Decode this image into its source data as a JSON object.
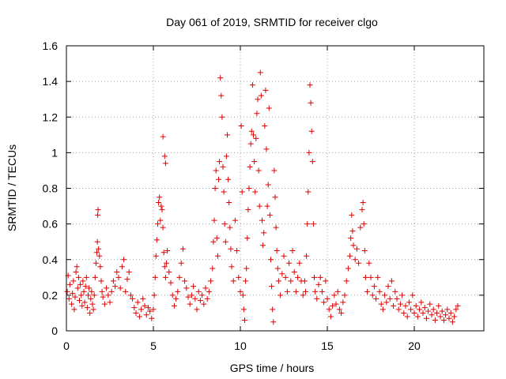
{
  "chart_data": {
    "type": "scatter",
    "title": "Day 061 of 2019, SRMTID for receiver clgo",
    "xlabel": "GPS time / hours",
    "ylabel": "SRMTID / TECUs",
    "xlim": [
      0,
      24
    ],
    "ylim": [
      0,
      1.6
    ],
    "xticks": [
      0,
      5,
      10,
      15,
      20
    ],
    "xtick_labels": [
      "0",
      "5",
      "10",
      "15",
      "20"
    ],
    "yticks": [
      0,
      0.2,
      0.4,
      0.6,
      0.8,
      1,
      1.2,
      1.4,
      1.6
    ],
    "ytick_labels": [
      "0",
      "0.2",
      "0.4",
      "0.6",
      "0.8",
      "1",
      "1.2",
      "1.4",
      "1.6"
    ],
    "grid": true,
    "marker": "+",
    "color": "#e00000",
    "series": [
      {
        "name": "SRMTID",
        "points": [
          [
            0.05,
            0.22
          ],
          [
            0.1,
            0.31
          ],
          [
            0.15,
            0.18
          ],
          [
            0.2,
            0.26
          ],
          [
            0.3,
            0.15
          ],
          [
            0.35,
            0.21
          ],
          [
            0.4,
            0.28
          ],
          [
            0.45,
            0.12
          ],
          [
            0.5,
            0.19
          ],
          [
            0.55,
            0.33
          ],
          [
            0.6,
            0.36
          ],
          [
            0.65,
            0.24
          ],
          [
            0.7,
            0.3
          ],
          [
            0.75,
            0.17
          ],
          [
            0.8,
            0.26
          ],
          [
            0.85,
            0.2
          ],
          [
            0.9,
            0.14
          ],
          [
            0.95,
            0.28
          ],
          [
            1.0,
            0.22
          ],
          [
            1.05,
            0.16
          ],
          [
            1.1,
            0.25
          ],
          [
            1.15,
            0.3
          ],
          [
            1.2,
            0.13
          ],
          [
            1.25,
            0.2
          ],
          [
            1.3,
            0.24
          ],
          [
            1.35,
            0.1
          ],
          [
            1.4,
            0.18
          ],
          [
            1.45,
            0.22
          ],
          [
            1.5,
            0.15
          ],
          [
            1.55,
            0.12
          ],
          [
            1.6,
            0.2
          ],
          [
            1.65,
            0.3
          ],
          [
            1.7,
            0.38
          ],
          [
            1.75,
            0.44
          ],
          [
            1.78,
            0.5
          ],
          [
            1.8,
            0.65
          ],
          [
            1.82,
            0.68
          ],
          [
            1.85,
            0.46
          ],
          [
            1.9,
            0.42
          ],
          [
            1.95,
            0.36
          ],
          [
            2.0,
            0.28
          ],
          [
            2.05,
            0.22
          ],
          [
            2.1,
            0.19
          ],
          [
            2.2,
            0.15
          ],
          [
            2.3,
            0.24
          ],
          [
            2.4,
            0.2
          ],
          [
            2.5,
            0.16
          ],
          [
            2.6,
            0.22
          ],
          [
            2.7,
            0.28
          ],
          [
            2.8,
            0.25
          ],
          [
            2.9,
            0.33
          ],
          [
            3.0,
            0.3
          ],
          [
            3.1,
            0.24
          ],
          [
            3.2,
            0.36
          ],
          [
            3.3,
            0.4
          ],
          [
            3.4,
            0.22
          ],
          [
            3.5,
            0.29
          ],
          [
            3.6,
            0.33
          ],
          [
            3.7,
            0.2
          ],
          [
            3.8,
            0.18
          ],
          [
            3.9,
            0.13
          ],
          [
            4.0,
            0.1
          ],
          [
            4.1,
            0.16
          ],
          [
            4.2,
            0.08
          ],
          [
            4.3,
            0.12
          ],
          [
            4.4,
            0.18
          ],
          [
            4.5,
            0.14
          ],
          [
            4.6,
            0.09
          ],
          [
            4.7,
            0.13
          ],
          [
            4.8,
            0.11
          ],
          [
            4.9,
            0.07
          ],
          [
            5.0,
            0.12
          ],
          [
            5.05,
            0.2
          ],
          [
            5.1,
            0.3
          ],
          [
            5.15,
            0.42
          ],
          [
            5.2,
            0.51
          ],
          [
            5.25,
            0.6
          ],
          [
            5.3,
            0.72
          ],
          [
            5.35,
            0.75
          ],
          [
            5.4,
            0.62
          ],
          [
            5.45,
            0.7
          ],
          [
            5.5,
            0.68
          ],
          [
            5.55,
            0.58
          ],
          [
            5.6,
            0.44
          ],
          [
            5.65,
            0.36
          ],
          [
            5.7,
            0.3
          ],
          [
            5.55,
            1.09
          ],
          [
            5.65,
            0.98
          ],
          [
            5.7,
            0.94
          ],
          [
            5.75,
            0.38
          ],
          [
            5.8,
            0.45
          ],
          [
            5.9,
            0.33
          ],
          [
            6.0,
            0.27
          ],
          [
            6.1,
            0.2
          ],
          [
            6.2,
            0.14
          ],
          [
            6.3,
            0.18
          ],
          [
            6.4,
            0.22
          ],
          [
            6.5,
            0.3
          ],
          [
            6.6,
            0.38
          ],
          [
            6.7,
            0.46
          ],
          [
            6.8,
            0.28
          ],
          [
            6.9,
            0.24
          ],
          [
            7.0,
            0.19
          ],
          [
            7.1,
            0.15
          ],
          [
            7.2,
            0.2
          ],
          [
            7.3,
            0.25
          ],
          [
            7.4,
            0.18
          ],
          [
            7.5,
            0.12
          ],
          [
            7.6,
            0.22
          ],
          [
            7.7,
            0.17
          ],
          [
            7.8,
            0.2
          ],
          [
            7.9,
            0.15
          ],
          [
            8.0,
            0.24
          ],
          [
            8.1,
            0.18
          ],
          [
            8.2,
            0.22
          ],
          [
            8.3,
            0.28
          ],
          [
            8.4,
            0.35
          ],
          [
            8.45,
            0.5
          ],
          [
            8.5,
            0.62
          ],
          [
            8.55,
            0.8
          ],
          [
            8.6,
            0.9
          ],
          [
            8.65,
            0.52
          ],
          [
            8.7,
            0.42
          ],
          [
            8.75,
            0.85
          ],
          [
            8.8,
            0.95
          ],
          [
            8.85,
            1.42
          ],
          [
            8.9,
            1.32
          ],
          [
            8.95,
            1.2
          ],
          [
            9.0,
            0.92
          ],
          [
            9.05,
            0.78
          ],
          [
            9.1,
            0.6
          ],
          [
            9.15,
            0.5
          ],
          [
            9.2,
            0.98
          ],
          [
            9.25,
            1.1
          ],
          [
            9.3,
            0.85
          ],
          [
            9.35,
            0.72
          ],
          [
            9.4,
            0.58
          ],
          [
            9.45,
            0.46
          ],
          [
            9.5,
            0.36
          ],
          [
            9.6,
            0.28
          ],
          [
            9.7,
            0.62
          ],
          [
            9.8,
            0.45
          ],
          [
            9.9,
            0.3
          ],
          [
            10.0,
            0.22
          ],
          [
            10.05,
            1.15
          ],
          [
            10.1,
            0.78
          ],
          [
            10.15,
            0.2
          ],
          [
            10.2,
            0.12
          ],
          [
            10.25,
            0.06
          ],
          [
            10.3,
            0.28
          ],
          [
            10.35,
            0.35
          ],
          [
            10.4,
            0.52
          ],
          [
            10.45,
            0.68
          ],
          [
            10.5,
            0.8
          ],
          [
            10.55,
            0.92
          ],
          [
            10.6,
            1.05
          ],
          [
            10.65,
            1.12
          ],
          [
            10.7,
            1.38
          ],
          [
            10.75,
            1.1
          ],
          [
            10.8,
            0.95
          ],
          [
            10.85,
            0.78
          ],
          [
            10.9,
            1.08
          ],
          [
            10.95,
            1.22
          ],
          [
            11.0,
            1.3
          ],
          [
            11.05,
            0.9
          ],
          [
            11.1,
            0.7
          ],
          [
            11.15,
            1.45
          ],
          [
            11.2,
            1.32
          ],
          [
            11.25,
            0.62
          ],
          [
            11.3,
            0.48
          ],
          [
            11.35,
            0.55
          ],
          [
            11.4,
            1.15
          ],
          [
            11.45,
            1.35
          ],
          [
            11.5,
            1.02
          ],
          [
            11.55,
            0.7
          ],
          [
            11.6,
            0.82
          ],
          [
            11.65,
            1.25
          ],
          [
            11.7,
            0.65
          ],
          [
            11.75,
            0.4
          ],
          [
            11.8,
            0.25
          ],
          [
            11.85,
            0.12
          ],
          [
            11.9,
            0.05
          ],
          [
            11.95,
            0.9
          ],
          [
            12.0,
            0.75
          ],
          [
            12.05,
            0.58
          ],
          [
            12.1,
            0.45
          ],
          [
            12.15,
            0.35
          ],
          [
            12.2,
            0.28
          ],
          [
            12.3,
            0.2
          ],
          [
            12.4,
            0.32
          ],
          [
            12.5,
            0.42
          ],
          [
            12.6,
            0.3
          ],
          [
            12.7,
            0.22
          ],
          [
            12.8,
            0.38
          ],
          [
            12.9,
            0.28
          ],
          [
            13.0,
            0.45
          ],
          [
            13.1,
            0.33
          ],
          [
            13.2,
            0.22
          ],
          [
            13.3,
            0.3
          ],
          [
            13.4,
            0.38
          ],
          [
            13.5,
            0.28
          ],
          [
            13.6,
            0.2
          ],
          [
            13.7,
            0.28
          ],
          [
            13.75,
            0.22
          ],
          [
            13.8,
            0.42
          ],
          [
            13.85,
            0.6
          ],
          [
            13.9,
            0.78
          ],
          [
            13.95,
            1.0
          ],
          [
            14.0,
            1.38
          ],
          [
            14.05,
            1.28
          ],
          [
            14.1,
            1.12
          ],
          [
            14.15,
            0.95
          ],
          [
            14.2,
            0.6
          ],
          [
            14.25,
            0.3
          ],
          [
            14.3,
            0.22
          ],
          [
            14.4,
            0.18
          ],
          [
            14.5,
            0.26
          ],
          [
            14.6,
            0.3
          ],
          [
            14.7,
            0.22
          ],
          [
            14.8,
            0.16
          ],
          [
            14.9,
            0.28
          ],
          [
            15.0,
            0.18
          ],
          [
            15.1,
            0.12
          ],
          [
            15.2,
            0.08
          ],
          [
            15.3,
            0.14
          ],
          [
            15.4,
            0.2
          ],
          [
            15.5,
            0.15
          ],
          [
            15.6,
            0.22
          ],
          [
            15.7,
            0.12
          ],
          [
            15.8,
            0.1
          ],
          [
            15.9,
            0.16
          ],
          [
            16.0,
            0.2
          ],
          [
            16.1,
            0.28
          ],
          [
            16.2,
            0.35
          ],
          [
            16.3,
            0.42
          ],
          [
            16.35,
            0.52
          ],
          [
            16.4,
            0.65
          ],
          [
            16.45,
            0.56
          ],
          [
            16.5,
            0.48
          ],
          [
            16.6,
            0.4
          ],
          [
            16.7,
            0.46
          ],
          [
            16.8,
            0.38
          ],
          [
            16.9,
            0.58
          ],
          [
            17.0,
            0.68
          ],
          [
            17.05,
            0.72
          ],
          [
            17.1,
            0.6
          ],
          [
            17.15,
            0.45
          ],
          [
            17.2,
            0.3
          ],
          [
            17.3,
            0.22
          ],
          [
            17.4,
            0.38
          ],
          [
            17.5,
            0.3
          ],
          [
            17.6,
            0.2
          ],
          [
            17.7,
            0.25
          ],
          [
            17.8,
            0.18
          ],
          [
            17.9,
            0.3
          ],
          [
            18.0,
            0.22
          ],
          [
            18.1,
            0.15
          ],
          [
            18.2,
            0.12
          ],
          [
            18.3,
            0.2
          ],
          [
            18.4,
            0.16
          ],
          [
            18.5,
            0.25
          ],
          [
            18.6,
            0.18
          ],
          [
            18.7,
            0.28
          ],
          [
            18.8,
            0.14
          ],
          [
            18.9,
            0.22
          ],
          [
            19.0,
            0.18
          ],
          [
            19.1,
            0.12
          ],
          [
            19.2,
            0.15
          ],
          [
            19.3,
            0.2
          ],
          [
            19.4,
            0.1
          ],
          [
            19.5,
            0.14
          ],
          [
            19.6,
            0.08
          ],
          [
            19.7,
            0.16
          ],
          [
            19.8,
            0.12
          ],
          [
            19.9,
            0.2
          ],
          [
            20.0,
            0.1
          ],
          [
            20.1,
            0.14
          ],
          [
            20.2,
            0.08
          ],
          [
            20.3,
            0.12
          ],
          [
            20.4,
            0.16
          ],
          [
            20.5,
            0.1
          ],
          [
            20.6,
            0.13
          ],
          [
            20.7,
            0.07
          ],
          [
            20.8,
            0.11
          ],
          [
            20.9,
            0.15
          ],
          [
            21.0,
            0.09
          ],
          [
            21.1,
            0.12
          ],
          [
            21.2,
            0.06
          ],
          [
            21.3,
            0.1
          ],
          [
            21.4,
            0.14
          ],
          [
            21.5,
            0.08
          ],
          [
            21.6,
            0.11
          ],
          [
            21.7,
            0.06
          ],
          [
            21.8,
            0.09
          ],
          [
            21.9,
            0.12
          ],
          [
            22.0,
            0.07
          ],
          [
            22.1,
            0.1
          ],
          [
            22.2,
            0.05
          ],
          [
            22.3,
            0.08
          ],
          [
            22.4,
            0.12
          ],
          [
            22.5,
            0.14
          ]
        ]
      }
    ]
  }
}
